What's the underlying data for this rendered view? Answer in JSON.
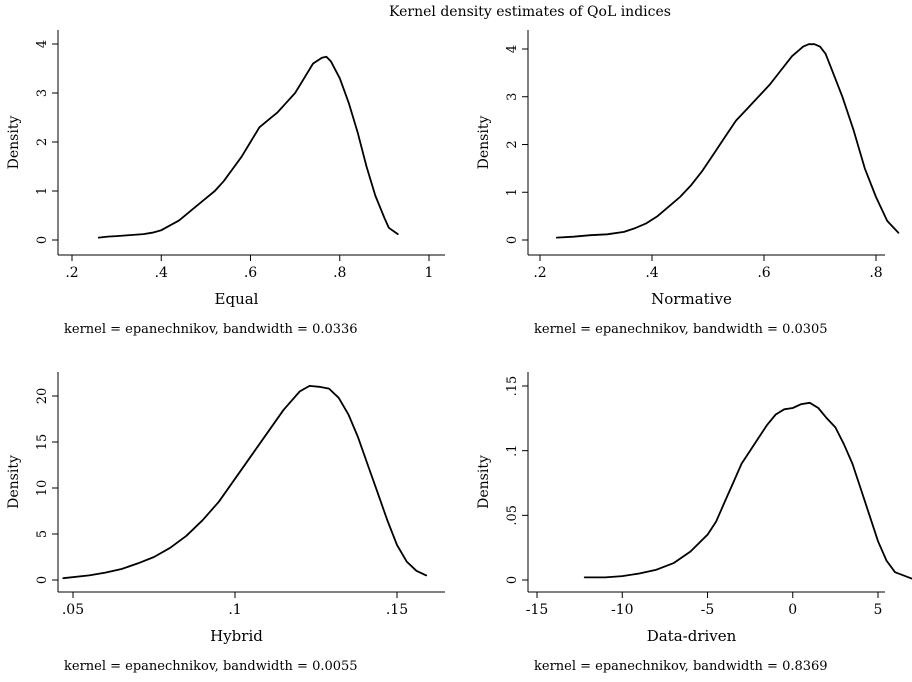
{
  "figure": {
    "title": "Kernel density estimates of QoL indices"
  },
  "chart_data": [
    {
      "type": "line",
      "xlabel": "Equal",
      "ylabel": "Density",
      "note": "kernel = epanechnikov, bandwidth = 0.0336",
      "xlim": [
        0.2,
        1.0
      ],
      "ylim": [
        0,
        4
      ],
      "xticks": [
        0.2,
        0.4,
        0.6,
        0.8,
        1.0
      ],
      "xtick_labels": [
        ".2",
        ".4",
        ".6",
        ".8",
        "1"
      ],
      "yticks": [
        0,
        1,
        2,
        3,
        4
      ],
      "ytick_labels": [
        "0",
        "1",
        "2",
        "3",
        "4"
      ],
      "x": [
        0.26,
        0.28,
        0.3,
        0.33,
        0.36,
        0.38,
        0.4,
        0.42,
        0.44,
        0.46,
        0.48,
        0.5,
        0.52,
        0.54,
        0.56,
        0.58,
        0.6,
        0.62,
        0.64,
        0.66,
        0.68,
        0.7,
        0.72,
        0.74,
        0.76,
        0.77,
        0.78,
        0.8,
        0.82,
        0.84,
        0.86,
        0.88,
        0.9,
        0.91,
        0.93
      ],
      "y": [
        0.05,
        0.07,
        0.08,
        0.1,
        0.12,
        0.15,
        0.2,
        0.3,
        0.4,
        0.55,
        0.7,
        0.85,
        1.0,
        1.2,
        1.45,
        1.7,
        2.0,
        2.3,
        2.45,
        2.6,
        2.8,
        3.0,
        3.3,
        3.6,
        3.72,
        3.74,
        3.65,
        3.3,
        2.8,
        2.2,
        1.5,
        0.9,
        0.45,
        0.25,
        0.12
      ]
    },
    {
      "type": "line",
      "xlabel": "Normative",
      "ylabel": "Density",
      "note": "kernel = epanechnikov, bandwidth = 0.0305",
      "xlim": [
        0.2,
        0.85
      ],
      "ylim": [
        0,
        4
      ],
      "xticks": [
        0.2,
        0.4,
        0.6,
        0.8
      ],
      "xtick_labels": [
        ".2",
        ".4",
        ".6",
        ".8"
      ],
      "yticks": [
        0,
        1,
        2,
        3,
        4
      ],
      "ytick_labels": [
        "0",
        "1",
        "2",
        "3",
        "4"
      ],
      "x": [
        0.23,
        0.26,
        0.29,
        0.32,
        0.35,
        0.37,
        0.39,
        0.41,
        0.43,
        0.45,
        0.47,
        0.49,
        0.51,
        0.53,
        0.55,
        0.57,
        0.59,
        0.61,
        0.63,
        0.65,
        0.67,
        0.68,
        0.69,
        0.7,
        0.71,
        0.72,
        0.74,
        0.76,
        0.78,
        0.8,
        0.82,
        0.84
      ],
      "y": [
        0.05,
        0.07,
        0.1,
        0.12,
        0.17,
        0.25,
        0.35,
        0.5,
        0.7,
        0.9,
        1.15,
        1.45,
        1.8,
        2.15,
        2.5,
        2.75,
        3.0,
        3.25,
        3.55,
        3.85,
        4.05,
        4.1,
        4.1,
        4.05,
        3.9,
        3.6,
        3.0,
        2.3,
        1.5,
        0.9,
        0.4,
        0.15
      ]
    },
    {
      "type": "line",
      "xlabel": "Hybrid",
      "ylabel": "Density",
      "note": "kernel = epanechnikov, bandwidth = 0.0055",
      "xlim": [
        0.045,
        0.16
      ],
      "ylim": [
        0,
        20
      ],
      "xticks": [
        0.05,
        0.1,
        0.15
      ],
      "xtick_labels": [
        ".05",
        ".1",
        ".15"
      ],
      "yticks": [
        0,
        5,
        10,
        15,
        20
      ],
      "ytick_labels": [
        "0",
        "5",
        "10",
        "15",
        "20"
      ],
      "x": [
        0.047,
        0.055,
        0.06,
        0.065,
        0.07,
        0.075,
        0.08,
        0.085,
        0.09,
        0.095,
        0.1,
        0.105,
        0.11,
        0.115,
        0.12,
        0.123,
        0.126,
        0.129,
        0.132,
        0.135,
        0.138,
        0.141,
        0.144,
        0.147,
        0.15,
        0.153,
        0.156,
        0.159
      ],
      "y": [
        0.2,
        0.5,
        0.8,
        1.2,
        1.8,
        2.5,
        3.5,
        4.8,
        6.5,
        8.5,
        11.0,
        13.5,
        16.0,
        18.5,
        20.5,
        21.1,
        21.0,
        20.8,
        19.8,
        18.0,
        15.5,
        12.5,
        9.5,
        6.5,
        3.8,
        2.0,
        1.0,
        0.5
      ]
    },
    {
      "type": "line",
      "xlabel": "Data-driven",
      "ylabel": "Density",
      "note": "kernel = epanechnikov, bandwidth = 0.8369",
      "xlim": [
        -16,
        8
      ],
      "ylim": [
        0,
        0.15
      ],
      "xticks": [
        -15,
        -10,
        -5,
        0,
        5
      ],
      "xtick_labels": [
        "-15",
        "-10",
        "-5",
        "0",
        "5"
      ],
      "yticks": [
        0,
        0.05,
        0.1,
        0.15
      ],
      "ytick_labels": [
        "0",
        ".05",
        ".1",
        ".15"
      ],
      "x": [
        -12.2,
        -11,
        -10,
        -9,
        -8,
        -7,
        -6,
        -5,
        -4.5,
        -4,
        -3.5,
        -3,
        -2.5,
        -2,
        -1.5,
        -1,
        -0.5,
        0,
        0.5,
        1,
        1.5,
        2,
        2.5,
        3,
        3.5,
        4,
        4.5,
        5,
        5.5,
        6,
        7
      ],
      "y": [
        0.002,
        0.002,
        0.003,
        0.005,
        0.008,
        0.013,
        0.022,
        0.035,
        0.045,
        0.06,
        0.075,
        0.09,
        0.1,
        0.11,
        0.12,
        0.128,
        0.132,
        0.133,
        0.136,
        0.137,
        0.133,
        0.125,
        0.118,
        0.105,
        0.09,
        0.07,
        0.05,
        0.03,
        0.015,
        0.006,
        0.001
      ]
    }
  ]
}
